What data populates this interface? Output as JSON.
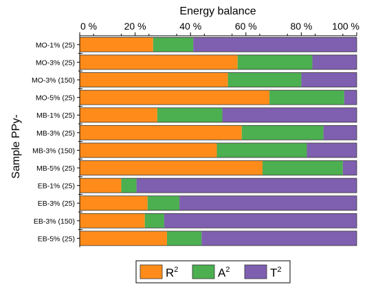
{
  "chart_data": {
    "type": "bar",
    "orientation": "horizontal",
    "stacked": true,
    "title": "",
    "xlabel": "Energy balance",
    "ylabel": "Sample PPy-",
    "xlim": [
      0,
      100
    ],
    "x_ticks": [
      0,
      20,
      40,
      60,
      80,
      100
    ],
    "x_tick_labels": [
      "0 %",
      "20 %",
      "40 %",
      "60 %",
      "80 %",
      "100 %"
    ],
    "x_axis_position": "top",
    "grid": false,
    "legend_position": "bottom",
    "categories": [
      "MO-1% (25)",
      "MO-3% (25)",
      "MO-3% (150)",
      "MO-5% (25)",
      "MB-1% (25)",
      "MB-3% (25)",
      "MB-3% (150)",
      "MB-5% (25)",
      "EB-1% (25)",
      "EB-3% (25)",
      "EB-3% (150)",
      "EB-5% (25)"
    ],
    "series": [
      {
        "name": "R",
        "sup": "2",
        "color": "#ff8c1a",
        "values": [
          26.5,
          57,
          53.5,
          68.5,
          28,
          58.5,
          49.5,
          66,
          15,
          24.5,
          23.5,
          31.5
        ]
      },
      {
        "name": "A",
        "sup": "2",
        "color": "#4caf50",
        "values": [
          14.5,
          27,
          26.5,
          27,
          23.5,
          29.5,
          32.5,
          29,
          5.5,
          11.5,
          7,
          12.5
        ]
      },
      {
        "name": "T",
        "sup": "2",
        "color": "#7f5faf",
        "values": [
          59,
          16,
          20,
          4.5,
          48.5,
          12,
          18,
          5,
          79.5,
          64,
          69.5,
          56
        ]
      }
    ]
  }
}
